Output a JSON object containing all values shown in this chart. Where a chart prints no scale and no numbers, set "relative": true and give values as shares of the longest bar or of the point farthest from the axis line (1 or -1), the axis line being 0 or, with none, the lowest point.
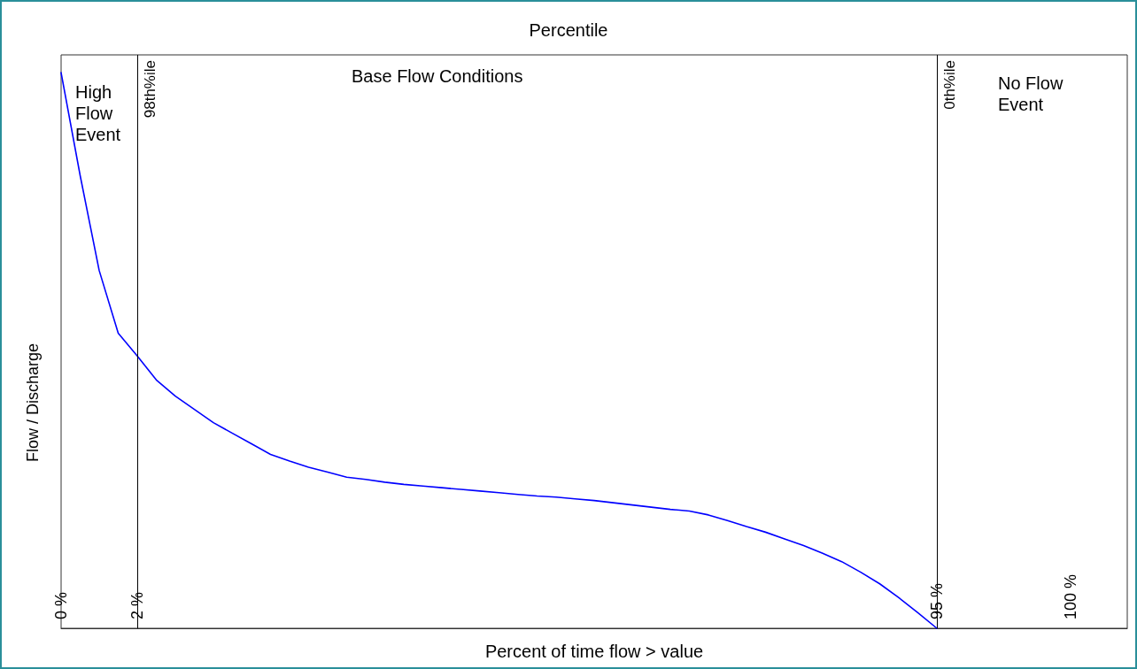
{
  "chart_data": {
    "type": "line",
    "relative": true,
    "x2label": "Percentile",
    "xlabel": "Percent of time flow > value",
    "ylabel": "Flow / Discharge",
    "categories": [
      "0 %",
      null,
      null,
      null,
      "2 %",
      null,
      null,
      null,
      null,
      null,
      null,
      null,
      null,
      null,
      null,
      null,
      null,
      null,
      null,
      null,
      null,
      null,
      null,
      null,
      null,
      null,
      null,
      null,
      null,
      null,
      null,
      null,
      null,
      null,
      null,
      null,
      null,
      null,
      null,
      null,
      null,
      null,
      null,
      null,
      null,
      null,
      "95 %",
      null,
      null,
      null,
      null,
      null,
      null,
      "100 %",
      null,
      null,
      null
    ],
    "series": [
      {
        "color": "#0000ff",
        "values": [
          1,
          0.815,
          0.644,
          0.531,
          0.49,
          0.447,
          0.418,
          0.394,
          0.37,
          0.351,
          0.332,
          0.313,
          0.301,
          0.29,
          0.281,
          0.272,
          0.268,
          0.263,
          0.259,
          0.256,
          0.253,
          0.25,
          0.247,
          0.244,
          0.241,
          0.238,
          0.236,
          0.233,
          0.23,
          0.226,
          0.222,
          0.218,
          0.214,
          0.211,
          0.204,
          0.194,
          0.183,
          0.173,
          0.161,
          0.149,
          0.135,
          0.12,
          0.101,
          0.08,
          0.055,
          0.028,
          0,
          null,
          null,
          null,
          null,
          null,
          null,
          null,
          null,
          null,
          null
        ]
      }
    ],
    "ref_lines": [
      {
        "axis": "x",
        "value": "2 %",
        "label": "98th%ile",
        "color": "#000000"
      },
      {
        "axis": "x",
        "value": "95 %",
        "label": "0th%ile",
        "color": "#000000"
      }
    ],
    "annotations": [
      "High Flow Event",
      "Base Flow Conditions",
      "No Flow Event"
    ],
    "grid": false,
    "marker": "none",
    "line_style": "solid"
  }
}
